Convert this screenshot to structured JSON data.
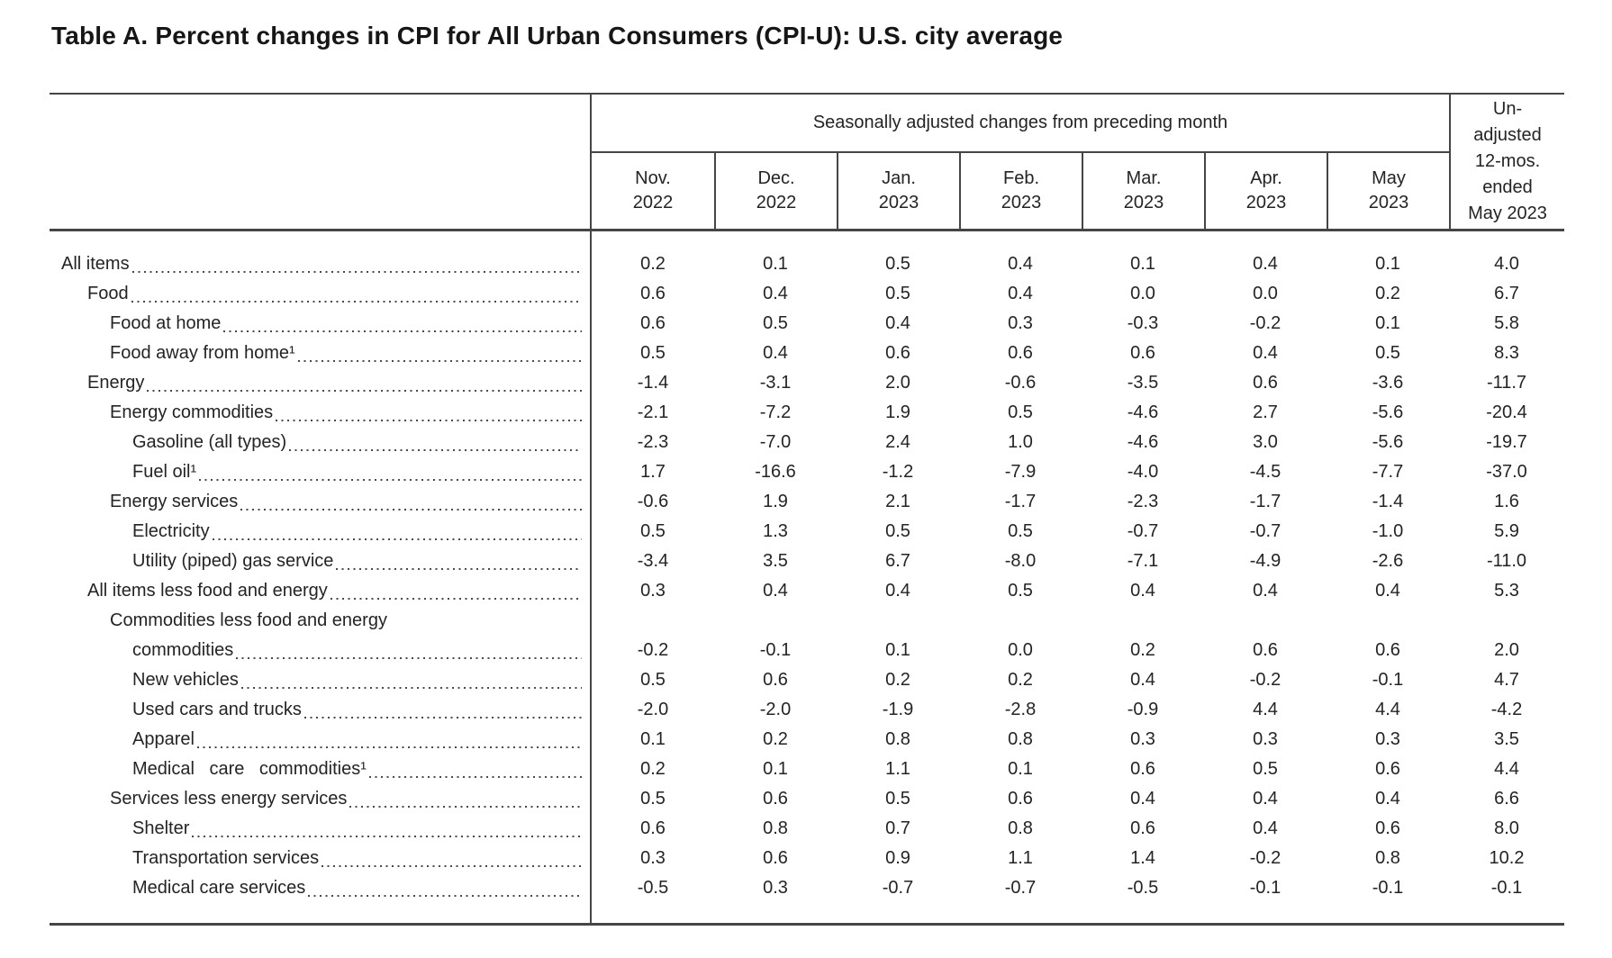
{
  "title": "Table A. Percent changes in CPI for All Urban Consumers (CPI-U): U.S. city average",
  "colors": {
    "rule": "#454545",
    "text": "#242424",
    "background": "#ffffff"
  },
  "table": {
    "group_header": "Seasonally adjusted changes from preceding month",
    "months": [
      {
        "month": "Nov.",
        "year": "2022"
      },
      {
        "month": "Dec.",
        "year": "2022"
      },
      {
        "month": "Jan.",
        "year": "2023"
      },
      {
        "month": "Feb.",
        "year": "2023"
      },
      {
        "month": "Mar.",
        "year": "2023"
      },
      {
        "month": "Apr.",
        "year": "2023"
      },
      {
        "month": "May",
        "year": "2023"
      }
    ],
    "unadjusted_header_lines": [
      "Un-",
      "adjusted",
      "12-mos.",
      "ended",
      "May 2023"
    ],
    "rows": [
      {
        "label": "All items",
        "indent": 0,
        "values": [
          "0.2",
          "0.1",
          "0.5",
          "0.4",
          "0.1",
          "0.4",
          "0.1",
          "4.0"
        ]
      },
      {
        "label": "Food",
        "indent": 1,
        "values": [
          "0.6",
          "0.4",
          "0.5",
          "0.4",
          "0.0",
          "0.0",
          "0.2",
          "6.7"
        ]
      },
      {
        "label": "Food at home",
        "indent": 2,
        "values": [
          "0.6",
          "0.5",
          "0.4",
          "0.3",
          "-0.3",
          "-0.2",
          "0.1",
          "5.8"
        ]
      },
      {
        "label": "Food away from home¹",
        "indent": 2,
        "values": [
          "0.5",
          "0.4",
          "0.6",
          "0.6",
          "0.6",
          "0.4",
          "0.5",
          "8.3"
        ]
      },
      {
        "label": "Energy",
        "indent": 1,
        "values": [
          "-1.4",
          "-3.1",
          "2.0",
          "-0.6",
          "-3.5",
          "0.6",
          "-3.6",
          "-11.7"
        ]
      },
      {
        "label": "Energy commodities",
        "indent": 2,
        "values": [
          "-2.1",
          "-7.2",
          "1.9",
          "0.5",
          "-4.6",
          "2.7",
          "-5.6",
          "-20.4"
        ]
      },
      {
        "label": "Gasoline (all types)",
        "indent": 3,
        "values": [
          "-2.3",
          "-7.0",
          "2.4",
          "1.0",
          "-4.6",
          "3.0",
          "-5.6",
          "-19.7"
        ]
      },
      {
        "label": "Fuel oil¹",
        "indent": 3,
        "values": [
          "1.7",
          "-16.6",
          "-1.2",
          "-7.9",
          "-4.0",
          "-4.5",
          "-7.7",
          "-37.0"
        ]
      },
      {
        "label": "Energy services",
        "indent": 2,
        "values": [
          "-0.6",
          "1.9",
          "2.1",
          "-1.7",
          "-2.3",
          "-1.7",
          "-1.4",
          "1.6"
        ]
      },
      {
        "label": "Electricity",
        "indent": 3,
        "values": [
          "0.5",
          "1.3",
          "0.5",
          "0.5",
          "-0.7",
          "-0.7",
          "-1.0",
          "5.9"
        ]
      },
      {
        "label": "Utility (piped) gas service",
        "indent": 3,
        "values": [
          "-3.4",
          "3.5",
          "6.7",
          "-8.0",
          "-7.1",
          "-4.9",
          "-2.6",
          "-11.0"
        ]
      },
      {
        "label": "All items less food and energy",
        "indent": 1,
        "values": [
          "0.3",
          "0.4",
          "0.4",
          "0.5",
          "0.4",
          "0.4",
          "0.4",
          "5.3"
        ]
      },
      {
        "label": "Commodities less food and energy",
        "label2": "commodities",
        "indent": 2,
        "values": [
          "-0.2",
          "-0.1",
          "0.1",
          "0.0",
          "0.2",
          "0.6",
          "0.6",
          "2.0"
        ]
      },
      {
        "label": "New vehicles",
        "indent": 3,
        "values": [
          "0.5",
          "0.6",
          "0.2",
          "0.2",
          "0.4",
          "-0.2",
          "-0.1",
          "4.7"
        ]
      },
      {
        "label": "Used cars and trucks",
        "indent": 3,
        "values": [
          "-2.0",
          "-2.0",
          "-1.9",
          "-2.8",
          "-0.9",
          "4.4",
          "4.4",
          "-4.2"
        ]
      },
      {
        "label": "Apparel",
        "indent": 3,
        "values": [
          "0.1",
          "0.2",
          "0.8",
          "0.8",
          "0.3",
          "0.3",
          "0.3",
          "3.5"
        ]
      },
      {
        "label": "Medical care commodities¹",
        "indent": 3,
        "wide_words": true,
        "values": [
          "0.2",
          "0.1",
          "1.1",
          "0.1",
          "0.6",
          "0.5",
          "0.6",
          "4.4"
        ]
      },
      {
        "label": "Services less energy services",
        "indent": 2,
        "values": [
          "0.5",
          "0.6",
          "0.5",
          "0.6",
          "0.4",
          "0.4",
          "0.4",
          "6.6"
        ]
      },
      {
        "label": "Shelter",
        "indent": 3,
        "values": [
          "0.6",
          "0.8",
          "0.7",
          "0.8",
          "0.6",
          "0.4",
          "0.6",
          "8.0"
        ]
      },
      {
        "label": "Transportation services",
        "indent": 3,
        "values": [
          "0.3",
          "0.6",
          "0.9",
          "1.1",
          "1.4",
          "-0.2",
          "0.8",
          "10.2"
        ]
      },
      {
        "label": "Medical care services",
        "indent": 3,
        "values": [
          "-0.5",
          "0.3",
          "-0.7",
          "-0.7",
          "-0.5",
          "-0.1",
          "-0.1",
          "-0.1"
        ]
      }
    ]
  }
}
